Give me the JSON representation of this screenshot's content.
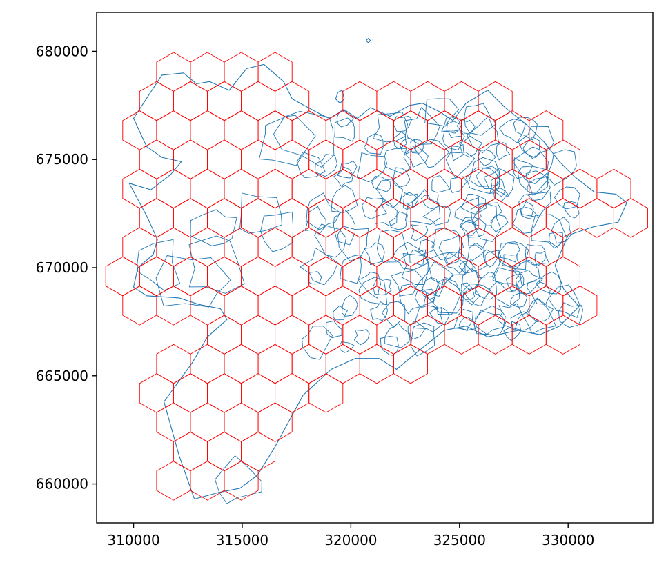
{
  "chart_data": {
    "type": "map",
    "title": "",
    "xlabel": "",
    "ylabel": "",
    "xlim": [
      308300,
      333900
    ],
    "ylim": [
      658200,
      681800
    ],
    "x_ticks": [
      310000,
      315000,
      320000,
      325000,
      330000
    ],
    "y_ticks": [
      660000,
      665000,
      670000,
      675000,
      680000
    ],
    "x_tick_labels": [
      "310000",
      "315000",
      "320000",
      "325000",
      "330000"
    ],
    "y_tick_labels": [
      "660000",
      "665000",
      "670000",
      "675000",
      "680000"
    ],
    "hex_radius": 900,
    "layers": [
      {
        "name": "boundaries",
        "color": "#1f77b4"
      },
      {
        "name": "hexagon grid",
        "color": "#ff0000"
      }
    ],
    "outline": [
      [
        309800,
        673900
      ],
      [
        310800,
        673600
      ],
      [
        311700,
        674300
      ],
      [
        312200,
        674900
      ],
      [
        311300,
        675100
      ],
      [
        310600,
        675600
      ],
      [
        310000,
        676900
      ],
      [
        311300,
        678900
      ],
      [
        312300,
        679000
      ],
      [
        312900,
        678500
      ],
      [
        313500,
        678600
      ],
      [
        314400,
        678200
      ],
      [
        315200,
        679200
      ],
      [
        316000,
        679400
      ],
      [
        316900,
        678600
      ],
      [
        317300,
        677800
      ],
      [
        318400,
        677200
      ],
      [
        319000,
        676900
      ],
      [
        319700,
        677300
      ],
      [
        320300,
        676900
      ],
      [
        320900,
        677400
      ],
      [
        321800,
        677000
      ],
      [
        322700,
        677500
      ],
      [
        323300,
        677600
      ],
      [
        324100,
        677200
      ],
      [
        324700,
        676800
      ],
      [
        325300,
        677600
      ],
      [
        326300,
        678200
      ],
      [
        327100,
        677400
      ],
      [
        328100,
        676600
      ],
      [
        328900,
        675800
      ],
      [
        329600,
        674900
      ],
      [
        330300,
        674200
      ],
      [
        331200,
        673500
      ],
      [
        332200,
        673400
      ],
      [
        332700,
        673000
      ],
      [
        332300,
        672100
      ],
      [
        331200,
        671900
      ],
      [
        330000,
        671500
      ],
      [
        329400,
        670100
      ],
      [
        329800,
        669000
      ],
      [
        330500,
        668200
      ],
      [
        329600,
        667300
      ],
      [
        328700,
        666900
      ],
      [
        327700,
        667100
      ],
      [
        326300,
        666800
      ],
      [
        325300,
        667300
      ],
      [
        324300,
        667100
      ],
      [
        323300,
        666300
      ],
      [
        322100,
        665300
      ],
      [
        321300,
        665800
      ],
      [
        320200,
        665800
      ],
      [
        319100,
        665300
      ],
      [
        317800,
        664100
      ],
      [
        316500,
        661700
      ],
      [
        315700,
        660400
      ],
      [
        314900,
        659800
      ],
      [
        313900,
        659600
      ],
      [
        312800,
        659300
      ],
      [
        312100,
        661300
      ],
      [
        311400,
        663800
      ],
      [
        312700,
        665600
      ],
      [
        313400,
        666800
      ],
      [
        314300,
        667600
      ],
      [
        314000,
        668100
      ],
      [
        313000,
        668300
      ],
      [
        312100,
        668600
      ],
      [
        310600,
        668700
      ],
      [
        310000,
        669100
      ],
      [
        310200,
        670000
      ],
      [
        310900,
        670600
      ],
      [
        311100,
        671300
      ],
      [
        310600,
        672400
      ],
      [
        309800,
        673900
      ]
    ],
    "islands": [
      [
        [
          320800,
          680600
        ],
        [
          320900,
          680500
        ],
        [
          320800,
          680400
        ],
        [
          320700,
          680500
        ],
        [
          320800,
          680600
        ]
      ],
      [
        [
          319400,
          678100
        ],
        [
          319600,
          678200
        ],
        [
          319700,
          677800
        ],
        [
          319500,
          677600
        ],
        [
          319300,
          677800
        ],
        [
          319400,
          678100
        ]
      ]
    ]
  }
}
